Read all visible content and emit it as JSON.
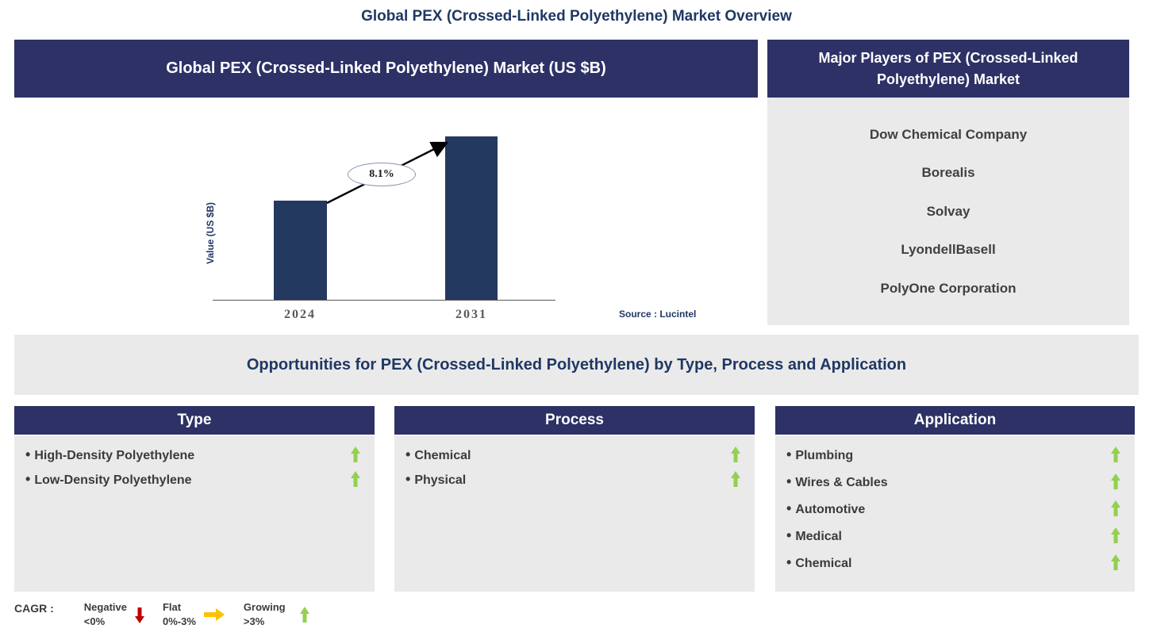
{
  "page_title": "Global PEX (Crossed-Linked Polyethylene) Market Overview",
  "chart_data": {
    "type": "bar",
    "title": "Global PEX (Crossed-Linked Polyethylene) Market (US $B)",
    "categories": [
      "2024",
      "2031"
    ],
    "values": [
      1.0,
      1.65
    ],
    "xlabel": "",
    "ylabel": "Value (US $B)",
    "ylim": [
      0,
      2
    ],
    "grid": false,
    "bar_color": "#24395f",
    "annotation": "8.1%",
    "source": "Source : Lucintel"
  },
  "major_players": {
    "header": "Major Players of PEX (Crossed-Linked Polyethylene) Market",
    "companies": [
      "Dow Chemical Company",
      "Borealis",
      "Solvay",
      "LyondellBasell",
      "PolyOne Corporation"
    ]
  },
  "opportunities": {
    "heading": "Opportunities for PEX (Crossed-Linked Polyethylene) by Type, Process and Application",
    "columns": [
      {
        "header": "Type",
        "items": [
          {
            "label": "High-Density Polyethylene",
            "trend": "growing"
          },
          {
            "label": "Low-Density Polyethylene",
            "trend": "growing"
          }
        ]
      },
      {
        "header": "Process",
        "items": [
          {
            "label": "Chemical",
            "trend": "growing"
          },
          {
            "label": "Physical",
            "trend": "growing"
          }
        ]
      },
      {
        "header": "Application",
        "items": [
          {
            "label": "Plumbing",
            "trend": "growing"
          },
          {
            "label": "Wires & Cables",
            "trend": "growing"
          },
          {
            "label": "Automotive",
            "trend": "growing"
          },
          {
            "label": "Medical",
            "trend": "growing"
          },
          {
            "label": "Chemical",
            "trend": "growing"
          }
        ]
      }
    ]
  },
  "legend": {
    "title": "CAGR :",
    "items": [
      {
        "label": "Negative",
        "range": "<0%",
        "icon": "down-arrow",
        "color": "#c00000"
      },
      {
        "label": "Flat",
        "range": "0%-3%",
        "icon": "right-arrow",
        "color": "#ffc000"
      },
      {
        "label": "Growing",
        "range": ">3%",
        "icon": "up-arrow",
        "color": "#92d050"
      }
    ]
  },
  "colors": {
    "navy_header": "#2d3166",
    "title_text": "#1f3864",
    "panel_gray": "#eaeaea",
    "growth_green": "#92d050",
    "negative_red": "#c00000",
    "flat_yellow": "#ffc000"
  }
}
